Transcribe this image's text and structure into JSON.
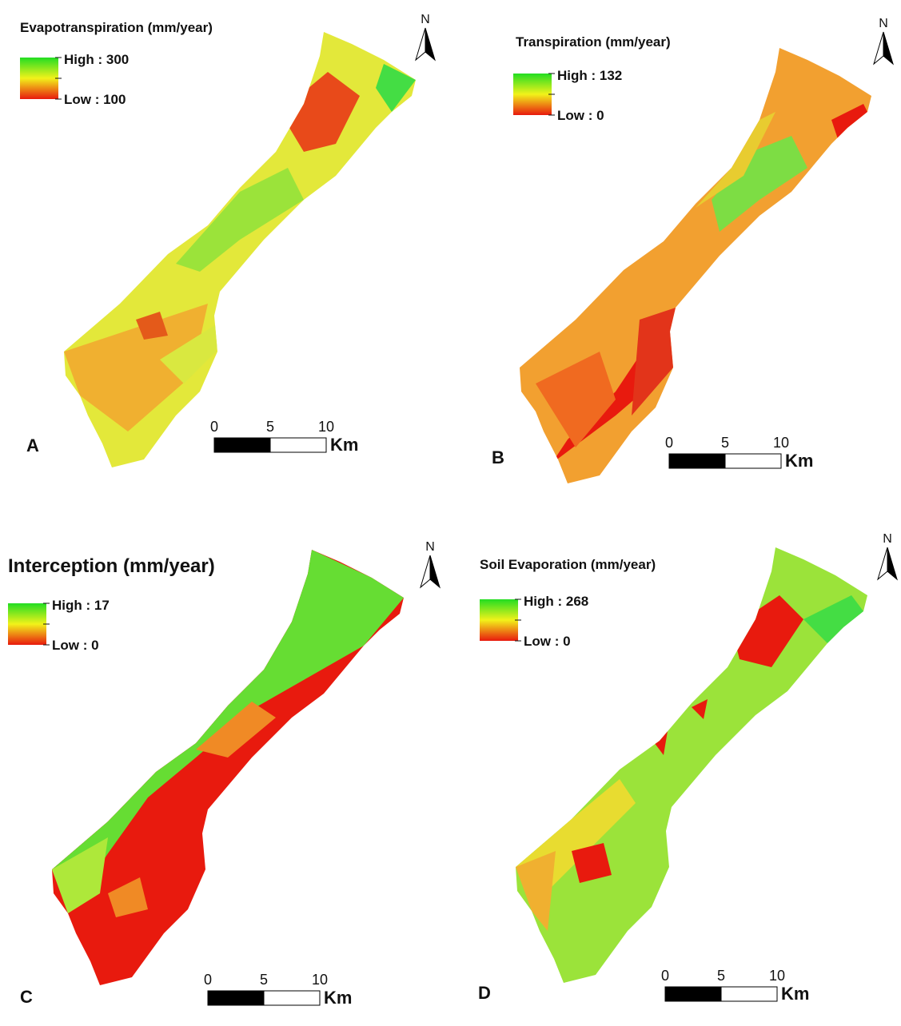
{
  "panels": [
    {
      "label": "A",
      "title": "Evapotranspiration (mm/year)",
      "high": "High : 300",
      "low": "Low : 100",
      "scale": [
        "0",
        "5",
        "10"
      ],
      "unit": "Km",
      "north": "N"
    },
    {
      "label": "B",
      "title": "Transpiration (mm/year)",
      "high": "High : 132",
      "low": "Low : 0",
      "scale": [
        "0",
        "5",
        "10"
      ],
      "unit": "Km",
      "north": "N"
    },
    {
      "label": "C",
      "title": "Interception (mm/year)",
      "high": "High : 17",
      "low": "Low : 0",
      "scale": [
        "0",
        "5",
        "10"
      ],
      "unit": "Km",
      "north": "N"
    },
    {
      "label": "D",
      "title": "Soil Evaporation (mm/year)",
      "high": "High : 268",
      "low": "Low : 0",
      "scale": [
        "0",
        "5",
        "10"
      ],
      "unit": "Km",
      "north": "N"
    }
  ]
}
